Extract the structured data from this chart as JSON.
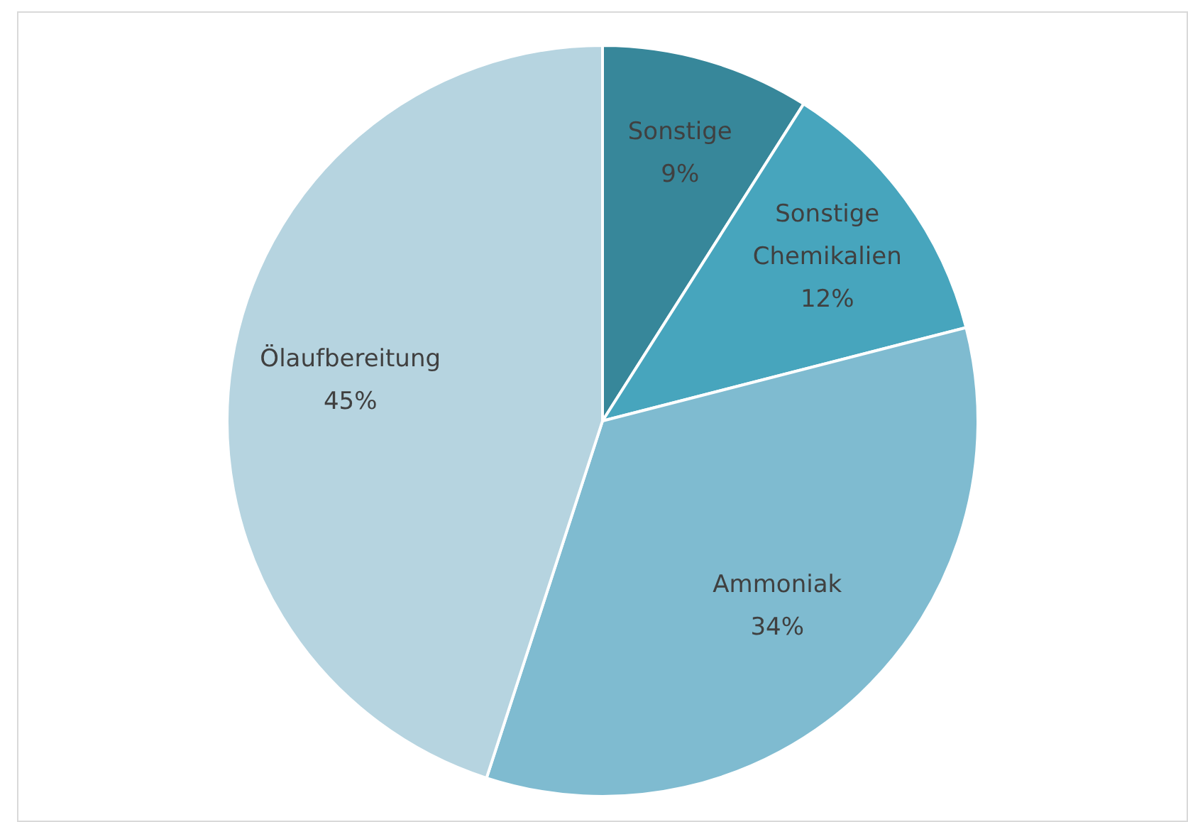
{
  "chart_data": {
    "type": "pie",
    "categories": [
      "Sonstige",
      "Sonstige Chemikalien",
      "Ammoniak",
      "Ölaufbereitung"
    ],
    "values": [
      9,
      12,
      34,
      45
    ],
    "colors": [
      "#37879a",
      "#47a5bd",
      "#7fbbd0",
      "#b6d4e0"
    ],
    "value_labels": [
      "9%",
      "12%",
      "34%",
      "45%"
    ],
    "legend": false
  }
}
